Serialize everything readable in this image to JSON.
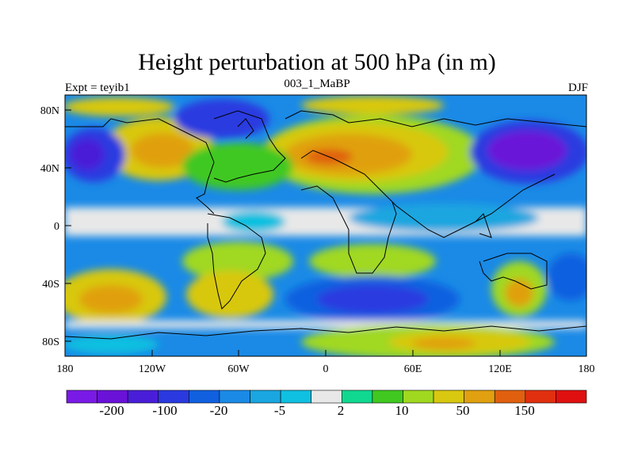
{
  "title": "Height perturbation at 500 hPa (in m)",
  "subtitle_left": "Expt = teyib1",
  "subtitle_center": "003_1_MaBP",
  "subtitle_right": "DJF",
  "lat_labels": [
    "80N",
    "40N",
    "0",
    "40S",
    "80S"
  ],
  "lon_labels": [
    "180",
    "120W",
    "60W",
    "0",
    "60E",
    "120E",
    "180"
  ],
  "colorbar": {
    "colors": [
      "#7a1ae6",
      "#6a12d8",
      "#4a1ed8",
      "#2a3ae0",
      "#1060e0",
      "#1a8ae6",
      "#1aa6e0",
      "#10c0e0",
      "#e8e8e8",
      "#10d890",
      "#40c820",
      "#a0d820",
      "#d8c810",
      "#e0a010",
      "#e06010",
      "#e03010",
      "#e01010"
    ],
    "tick_labels": [
      "-200",
      "-100",
      "-20",
      "-5",
      "2",
      "10",
      "50",
      "150"
    ]
  }
}
